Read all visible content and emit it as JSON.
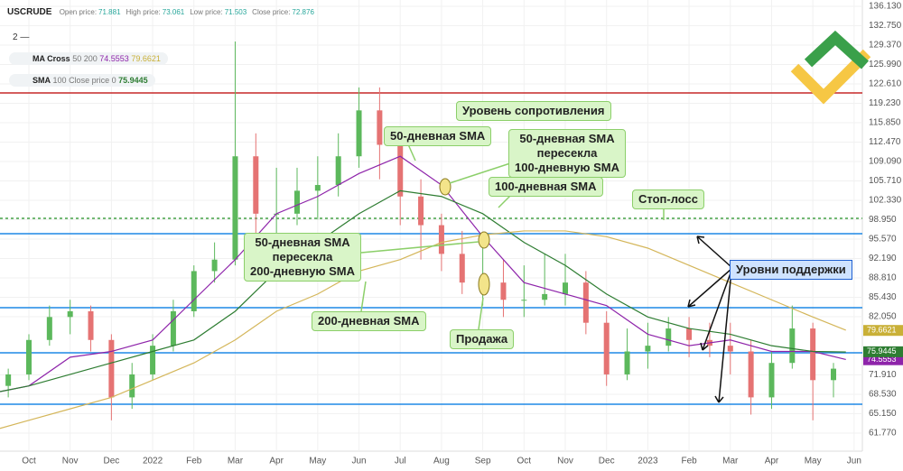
{
  "header": {
    "symbol": "USCRUDE",
    "fields": [
      {
        "label": "Open price:",
        "value": 71.881
      },
      {
        "label": "High price:",
        "value": 73.061
      },
      {
        "label": "Low price:",
        "value": 71.503
      },
      {
        "label": "Close price:",
        "value": 72.876
      }
    ],
    "pane": "2 —"
  },
  "indicators": [
    {
      "name": "MA Cross",
      "params": [
        50,
        200
      ],
      "values": [
        74.5553,
        79.6621
      ],
      "colors": [
        "#8e24aa",
        "#c9b037"
      ]
    },
    {
      "name": "SMA",
      "params": [
        100,
        "Close price",
        0
      ],
      "values": [
        75.9445
      ],
      "colors": [
        "#2e7d32"
      ]
    }
  ],
  "chart_data": {
    "type": "candlestick",
    "xlim": [
      -0.7,
      20.2
    ],
    "ylim": [
      58.63,
      137.23
    ],
    "xticks": [
      {
        "value": 0,
        "label": "Oct"
      },
      {
        "value": 1,
        "label": "Nov"
      },
      {
        "value": 2,
        "label": "Dec"
      },
      {
        "value": 3,
        "label": "2022"
      },
      {
        "value": 4,
        "label": "Feb"
      },
      {
        "value": 5,
        "label": "Mar"
      },
      {
        "value": 6,
        "label": "Apr"
      },
      {
        "value": 7,
        "label": "May"
      },
      {
        "value": 8,
        "label": "Jun"
      },
      {
        "value": 9,
        "label": "Jul"
      },
      {
        "value": 10,
        "label": "Aug"
      },
      {
        "value": 11,
        "label": "Sep"
      },
      {
        "value": 12,
        "label": "Oct"
      },
      {
        "value": 13,
        "label": "Nov"
      },
      {
        "value": 14,
        "label": "Dec"
      },
      {
        "value": 15,
        "label": "2023"
      },
      {
        "value": 16,
        "label": "Feb"
      },
      {
        "value": 17,
        "label": "Mar"
      },
      {
        "value": 18,
        "label": "Apr"
      },
      {
        "value": 19,
        "label": "May"
      },
      {
        "value": 20,
        "label": "Jun"
      }
    ],
    "yticks": [
      {
        "value": 136.13,
        "label": "136.130"
      },
      {
        "value": 132.75,
        "label": "132.750"
      },
      {
        "value": 129.37,
        "label": "129.370"
      },
      {
        "value": 125.99,
        "label": "125.990"
      },
      {
        "value": 122.61,
        "label": "122.610"
      },
      {
        "value": 119.23,
        "label": "119.230"
      },
      {
        "value": 115.85,
        "label": "115.850"
      },
      {
        "value": 112.47,
        "label": "112.470"
      },
      {
        "value": 109.09,
        "label": "109.090"
      },
      {
        "value": 105.71,
        "label": "105.710"
      },
      {
        "value": 102.33,
        "label": "102.330"
      },
      {
        "value": 98.95,
        "label": "98.950"
      },
      {
        "value": 95.57,
        "label": "95.570"
      },
      {
        "value": 92.19,
        "label": "92.190"
      },
      {
        "value": 88.81,
        "label": "88.810"
      },
      {
        "value": 85.43,
        "label": "85.430"
      },
      {
        "value": 82.05,
        "label": "82.050"
      },
      {
        "value": 71.91,
        "label": "71.910"
      },
      {
        "value": 68.53,
        "label": "68.530"
      },
      {
        "value": 65.15,
        "label": "65.150"
      },
      {
        "value": 61.77,
        "label": "61.770"
      }
    ],
    "candles": {
      "up_color": "#5cb85c",
      "down_color": "#e57373",
      "x": [
        -0.5,
        0,
        0.5,
        1,
        1.5,
        2,
        2.5,
        3,
        3.5,
        4,
        4.5,
        5,
        5.5,
        6,
        6.5,
        7,
        7.5,
        8,
        8.5,
        9,
        9.5,
        10,
        10.5,
        11,
        11.5,
        12,
        12.5,
        13,
        13.5,
        14,
        14.5,
        15,
        15.5,
        16,
        16.5,
        17,
        17.5,
        18,
        18.5,
        19,
        19.5
      ],
      "open": [
        70,
        72,
        78,
        82,
        83,
        78,
        68,
        72,
        77,
        83,
        90,
        92,
        110,
        100,
        100,
        104,
        105,
        110,
        118,
        112,
        103,
        98,
        93,
        88,
        88,
        85,
        85,
        86,
        88,
        81,
        72,
        76,
        77,
        80,
        78,
        77,
        76,
        68,
        74,
        80,
        71
      ],
      "high": [
        73,
        79,
        84,
        85,
        84,
        79,
        74,
        79,
        85,
        91,
        95,
        130,
        114,
        108,
        108,
        110,
        114,
        122,
        122,
        114,
        106,
        100,
        97,
        96,
        92,
        91,
        93,
        93,
        90,
        83,
        80,
        81,
        82,
        82,
        81,
        81,
        78,
        76,
        84,
        81,
        74
      ],
      "low": [
        68,
        71,
        77,
        79,
        76,
        64,
        66,
        71,
        76,
        82,
        88,
        91,
        96,
        94,
        98,
        99,
        103,
        108,
        106,
        98,
        92,
        90,
        86,
        84,
        82,
        82,
        84,
        84,
        79,
        70,
        71,
        73,
        76,
        75,
        75,
        72,
        65,
        66,
        73,
        64,
        68
      ],
      "close": [
        72,
        78,
        82,
        83,
        78,
        68,
        72,
        77,
        83,
        90,
        92,
        110,
        100,
        100,
        104,
        105,
        110,
        118,
        112,
        103,
        98,
        93,
        88,
        88,
        85,
        85,
        86,
        88,
        81,
        72,
        76,
        77,
        80,
        78,
        77,
        76,
        68,
        74,
        80,
        71,
        73
      ]
    },
    "x": [
      -0.7,
      0,
      1,
      2,
      3,
      4,
      5,
      6,
      7,
      8,
      9,
      10,
      11,
      12,
      13,
      14,
      15,
      16,
      17,
      18,
      19,
      19.8
    ],
    "series": [
      {
        "name": "50-дневная SMA",
        "color": "#8e24aa",
        "values": [
          69,
          70,
          75,
          76,
          78,
          85,
          92,
          100,
          103,
          107,
          110,
          105,
          96,
          88,
          86,
          84,
          79,
          77,
          78,
          76,
          76,
          74.6
        ]
      },
      {
        "name": "100-дневная SMA",
        "color": "#2e7d32",
        "values": [
          69,
          70,
          72,
          74,
          76,
          78,
          83,
          90,
          95,
          100,
          104,
          103,
          100,
          95,
          91,
          86,
          82,
          80,
          79,
          77,
          76,
          75.9
        ]
      },
      {
        "name": "200-дневная SMA",
        "color": "#d4b65a",
        "values": [
          62.6,
          64,
          66,
          68,
          71,
          74,
          78,
          83,
          86,
          90,
          92,
          95,
          96.3,
          97,
          97,
          96,
          94,
          91,
          88,
          85,
          82,
          79.7
        ]
      }
    ],
    "levels": [
      {
        "value": 121.04,
        "color": "#c62828",
        "style": "solid"
      },
      {
        "value": 99.19,
        "color": "#43a047",
        "style": "dashed"
      },
      {
        "value": 96.51,
        "color": "#1e88e5",
        "style": "solid"
      },
      {
        "value": 83.63,
        "color": "#1e88e5",
        "style": "solid"
      },
      {
        "value": 75.77,
        "color": "#1e88e5",
        "style": "solid"
      },
      {
        "value": 66.8,
        "color": "#1e88e5",
        "style": "solid"
      }
    ],
    "annotations": {
      "resistance": "Уровень сопротивления",
      "sma50": "50-дневная SMA",
      "cross100": [
        "50-дневная SMA",
        "пересекла",
        "100-дневную SMA"
      ],
      "sma100": "100-дневная SMA",
      "stop": "Стоп-лосс",
      "cross200": [
        "50-дневная SMA",
        "пересекла",
        "200-дневную SMA"
      ],
      "support": "Уровни поддержки",
      "sma200": "200-дневная SMA",
      "sell": "Продажа"
    }
  }
}
